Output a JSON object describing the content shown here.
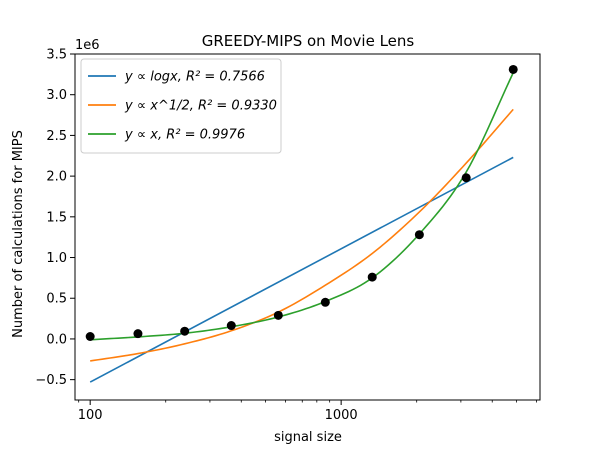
{
  "chart_data": {
    "type": "scatter",
    "title": "GREEDY-MIPS on Movie Lens",
    "xlabel": "signal size",
    "ylabel": "Number of calculations for MIPS",
    "x_scale": "log",
    "xlim": [
      87,
      6200
    ],
    "ylim": [
      -750000,
      3500000
    ],
    "y_offset_label": "1e6",
    "x_ticks": [
      100,
      1000
    ],
    "x_tick_labels": [
      "100",
      "1000"
    ],
    "y_ticks": [
      -500000,
      0,
      500000,
      1000000,
      1500000,
      2000000,
      2500000,
      3000000,
      3500000
    ],
    "y_tick_labels": [
      "−0.5",
      "0.0",
      "0.5",
      "1.0",
      "1.5",
      "2.0",
      "2.5",
      "3.0",
      "3.5"
    ],
    "grid": false,
    "legend_position": "top-left",
    "points": {
      "color": "#000000",
      "x": [
        100,
        155,
        238,
        365,
        562,
        865,
        1330,
        2050,
        3150,
        4850
      ],
      "y": [
        30000,
        65000,
        95000,
        165000,
        290000,
        450000,
        760000,
        1280000,
        1980000,
        3310000
      ]
    },
    "series": [
      {
        "name": "y ∝ logx,  R² = 0.7566",
        "color": "#1f77b4",
        "x": [
          100,
          4850
        ],
        "y": [
          -530000,
          2230000
        ]
      },
      {
        "name": "y ∝ x^1/2,  R² = 0.9330",
        "color": "#ff7f0e",
        "x": [
          100,
          155,
          238,
          365,
          562,
          865,
          1330,
          2050,
          3150,
          4850
        ],
        "y": [
          -270000,
          -180000,
          -60000,
          100000,
          330000,
          660000,
          1050000,
          1560000,
          2160000,
          2820000
        ]
      },
      {
        "name": "y ∝ x,  R² = 0.9976",
        "color": "#2ca02c",
        "x": [
          100,
          155,
          238,
          365,
          562,
          865,
          1330,
          2050,
          3150,
          4850
        ],
        "y": [
          -10000,
          25000,
          70000,
          150000,
          270000,
          460000,
          750000,
          1290000,
          2050000,
          3270000
        ]
      }
    ]
  }
}
